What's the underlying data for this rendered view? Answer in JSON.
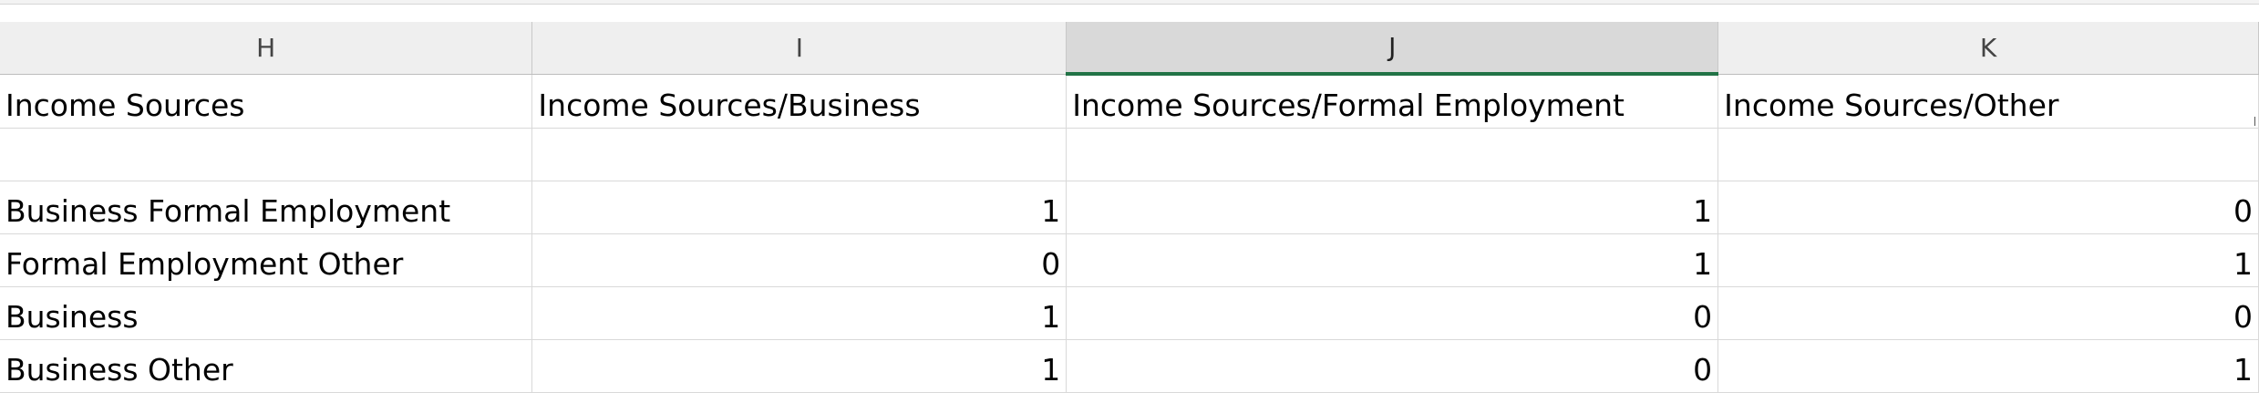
{
  "columns": [
    {
      "letter": "H",
      "selected": false
    },
    {
      "letter": "I",
      "selected": false
    },
    {
      "letter": "J",
      "selected": true
    },
    {
      "letter": "K",
      "selected": false
    }
  ],
  "header_row": {
    "h": "Income Sources",
    "i": "Income Sources/Business",
    "j": "Income Sources/Formal Employment",
    "k": "Income Sources/Other"
  },
  "rows": [
    {
      "h": "",
      "i": "",
      "j": "",
      "k": ""
    },
    {
      "h": "Business Formal Employment",
      "i": "1",
      "j": "1",
      "k": "0"
    },
    {
      "h": "Formal Employment Other",
      "i": "0",
      "j": "1",
      "k": "1"
    },
    {
      "h": "Business",
      "i": "1",
      "j": "0",
      "k": "0"
    },
    {
      "h": "Business Other",
      "i": "1",
      "j": "0",
      "k": "1"
    }
  ],
  "colors": {
    "selected_accent": "#217346",
    "header_bg": "#efefef",
    "selected_header_bg": "#d9d9d9",
    "gridline": "#d9d9d9"
  }
}
